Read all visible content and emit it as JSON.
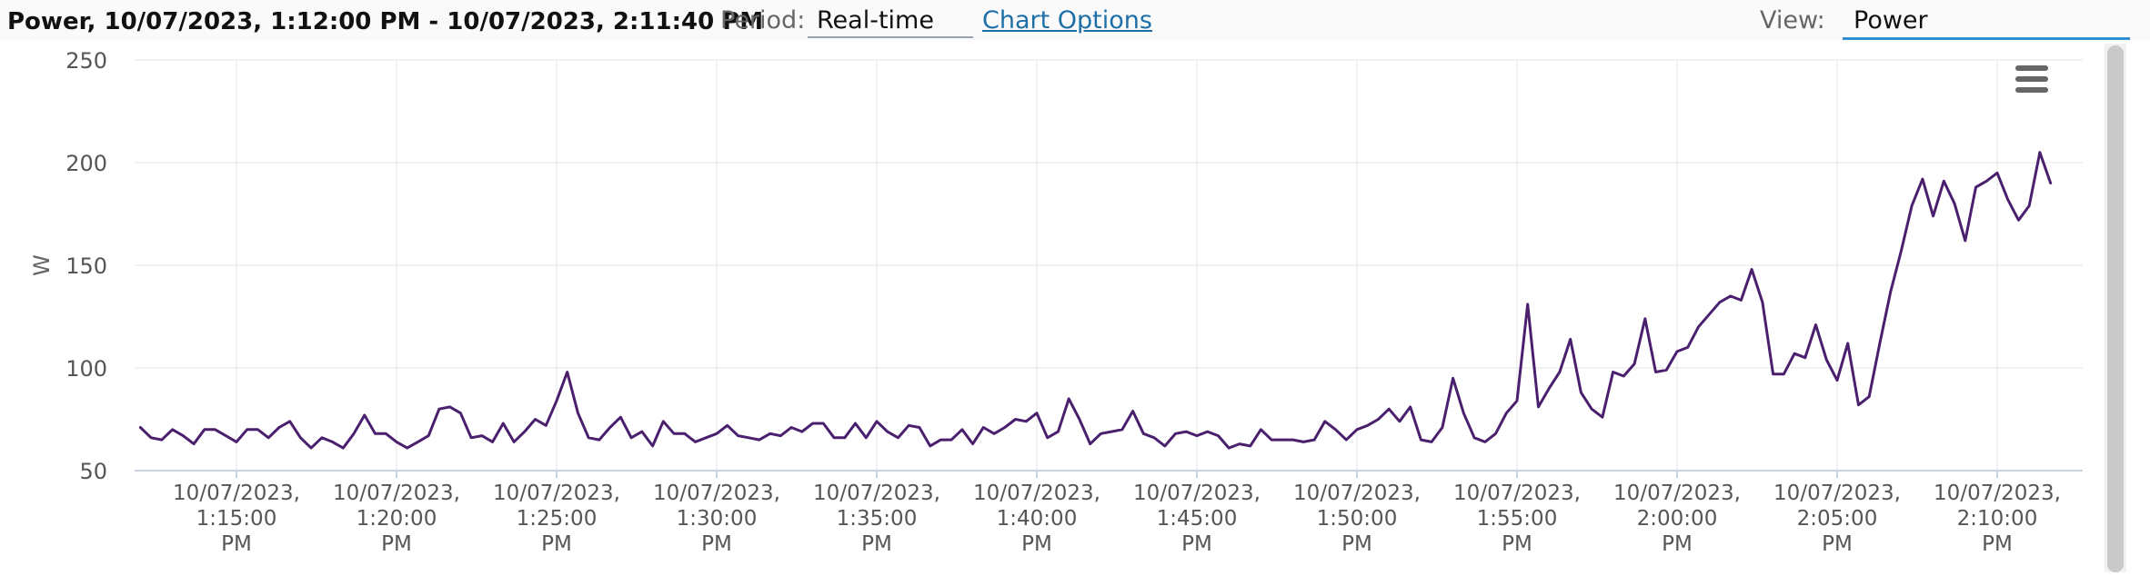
{
  "header": {
    "title": "Power, 10/07/2023, 1:12:00 PM - 10/07/2023, 2:11:40 PM",
    "period_label": "Period:",
    "period_value": "Real-time",
    "chart_options_label": "Chart Options",
    "view_label": "View:",
    "view_value": "Power"
  },
  "menu_icon": "hamburger-menu-icon",
  "colors": {
    "series": "#4a1f6e",
    "grid": "#e6e6e6",
    "axis": "#c9d3e6",
    "link": "#1e6fa8",
    "view_underline": "#2f8fd0"
  },
  "chart_data": {
    "type": "line",
    "title": "",
    "xlabel": "",
    "ylabel": "W",
    "ylim": [
      50,
      250
    ],
    "yticks": [
      50,
      100,
      150,
      200,
      250
    ],
    "grid": true,
    "legend": "none",
    "x_start": "10/07/2023 1:12:00 PM",
    "x_end": "10/07/2023 2:11:40 PM",
    "x_interval_seconds": 20,
    "x_tick_labels": [
      [
        "10/07/2023,",
        "1:15:00",
        "PM"
      ],
      [
        "10/07/2023,",
        "1:20:00",
        "PM"
      ],
      [
        "10/07/2023,",
        "1:25:00",
        "PM"
      ],
      [
        "10/07/2023,",
        "1:30:00",
        "PM"
      ],
      [
        "10/07/2023,",
        "1:35:00",
        "PM"
      ],
      [
        "10/07/2023,",
        "1:40:00",
        "PM"
      ],
      [
        "10/07/2023,",
        "1:45:00",
        "PM"
      ],
      [
        "10/07/2023,",
        "1:50:00",
        "PM"
      ],
      [
        "10/07/2023,",
        "1:55:00",
        "PM"
      ],
      [
        "10/07/2023,",
        "2:00:00",
        "PM"
      ],
      [
        "10/07/2023,",
        "2:05:00",
        "PM"
      ],
      [
        "10/07/2023,",
        "2:10:00",
        "PM"
      ]
    ],
    "series": [
      {
        "name": "",
        "values": [
          71,
          66,
          65,
          70,
          67,
          63,
          70,
          70,
          67,
          64,
          70,
          70,
          66,
          71,
          74,
          66,
          61,
          66,
          64,
          61,
          68,
          77,
          68,
          68,
          64,
          61,
          64,
          67,
          80,
          81,
          78,
          66,
          67,
          64,
          73,
          64,
          69,
          75,
          72,
          84,
          98,
          78,
          66,
          65,
          71,
          76,
          66,
          69,
          62,
          74,
          68,
          68,
          64,
          66,
          68,
          72,
          67,
          66,
          65,
          68,
          67,
          71,
          69,
          73,
          73,
          66,
          66,
          73,
          66,
          74,
          69,
          66,
          72,
          71,
          62,
          65,
          65,
          70,
          63,
          71,
          68,
          71,
          75,
          74,
          78,
          66,
          69,
          85,
          75,
          63,
          68,
          69,
          70,
          79,
          68,
          66,
          62,
          68,
          69,
          67,
          69,
          67,
          61,
          63,
          62,
          70,
          65,
          65,
          65,
          64,
          65,
          74,
          70,
          65,
          70,
          72,
          75,
          80,
          74,
          81,
          65,
          64,
          71,
          95,
          78,
          66,
          64,
          68,
          78,
          84,
          131,
          81,
          90,
          98,
          114,
          88,
          80,
          76,
          98,
          96,
          102,
          124,
          98,
          99,
          108,
          110,
          120,
          126,
          132,
          135,
          133,
          148,
          132,
          97,
          97,
          107,
          105,
          121,
          104,
          94,
          112,
          82,
          86,
          112,
          137,
          157,
          179,
          192,
          174,
          191,
          180,
          162,
          188,
          191,
          195,
          182,
          172,
          179,
          205,
          190
        ]
      }
    ]
  }
}
